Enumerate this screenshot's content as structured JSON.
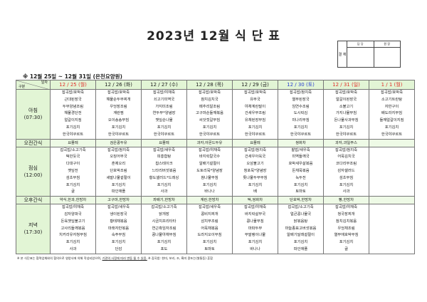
{
  "title": "2023년 12월 식 단 표",
  "approval": {
    "label": "결 재",
    "cols": [
      "담 당",
      "원 장"
    ]
  },
  "subtitle": "※ 12월 25일 ~ 12월 31일 (은천요양원)",
  "header": {
    "corner_top": "일자",
    "corner_bottom": "구분",
    "days": [
      {
        "label": "12 / 25 (월)",
        "color": "#e0302a"
      },
      {
        "label": "12 / 26 (화)",
        "color": "#222222"
      },
      {
        "label": "12 / 27 (수)",
        "color": "#222222"
      },
      {
        "label": "12 / 28 (목)",
        "color": "#222222"
      },
      {
        "label": "12 / 29 (금)",
        "color": "#222222"
      },
      {
        "label": "12 / 30 (토)",
        "color": "#2a3fd0"
      },
      {
        "label": "12 / 31 (일)",
        "color": "#e0302a"
      },
      {
        "label": "1 / 1 (월)",
        "color": "#e0302a"
      }
    ]
  },
  "rows": [
    {
      "type": "meal",
      "label": "아침",
      "time": "(07:30)",
      "days": [
        [
          "잡곡밥/호박죽",
          "근대된장국",
          "두부양념조림",
          "해물경단전",
          "얼갈이지짐",
          "포기김치",
          "한국야쿠르트"
        ],
        [
          "잡곡밥/호박죽",
          "해물순두부찌개",
          "우엉장조림",
          "계란찜",
          "오이송송무침",
          "포기김치",
          "한국야쿠르트"
        ],
        [
          "잡곡밥/야채죽",
          "쇠고기미역국",
          "가지미조림",
          "연두부*양념장",
          "깻잎순나물",
          "포기김치",
          "한국야쿠르트"
        ],
        [
          "잡곡밥/호박죽",
          "참치김치국",
          "메추리알조림",
          "고구마순들깨볶음",
          "씨앗젓갈무침",
          "포기김치",
          "한국야쿠르트"
        ],
        [
          "잡곡밥/호박죽",
          "유부국",
          "야채계란말이",
          "건새우무조림",
          "유채된장무침",
          "포기김치",
          "한국야쿠르트"
        ],
        [
          "잡곡밥/참치죽",
          "열무된장국",
          "임연수조림",
          "도시락김",
          "미나리무침",
          "포기김치",
          "한국야쿠르트"
        ],
        [
          "잡곡밥/호박죽",
          "얼갈이된장국",
          "소불고기",
          "가지나물무침",
          "돈나물사과무침",
          "포기김치",
          "한국야쿠르트"
        ],
        [
          "잡곡밥/호박죽",
          "소고기트란탕",
          "자반구이",
          "배도라지무침",
          "들깨얼갈이지짐",
          "포기김치",
          "한국야쿠르트"
        ]
      ]
    },
    {
      "type": "snack",
      "label": "오전간식",
      "days": [
        "요플레",
        "검은콩두유",
        "요플레",
        "과자,아몬드두유",
        "요플레",
        "쌍화차",
        "과자,과일주스",
        ""
      ]
    },
    {
      "type": "meal",
      "label": "점심",
      "time": "(12:00)",
      "days": [
        [
          "잡곡밥/소고기죽",
          "떡만둣국",
          "다대구이",
          "깻잎전",
          "섬초무침",
          "포기김치",
          "귤"
        ],
        [
          "잡곡밥/참치죽",
          "오징어무국",
          "훈제오리",
          "단호박조림",
          "세발나물겉절이",
          "포기김치",
          "파인애플"
        ],
        [
          "잡곡밥/새우죽",
          "피홍합탕",
          "찹스테이크",
          "느타리버섯볶음",
          "황도샐러드*드레싱",
          "포기김치",
          "사과"
        ],
        [
          "잡곡밥/야채죽",
          "바지락칼국수",
          "알배기겉절이",
          "도토리묵*양념장",
          "참나물무침",
          "포기김치",
          "바나나"
        ],
        [
          "잡곡밥/참치죽",
          "건새우아욱국",
          "오삼불고기",
          "청포묵*양념장",
          "톳나물두부무침",
          "포기김치",
          "배"
        ],
        [
          "찰밥/새우죽",
          "미역들깨국",
          "호박새우살볶음",
          "돈채묵볶음",
          "녹두전",
          "포기김치",
          "토마토"
        ],
        [
          "잡곡밥/참치죽",
          "어묵김치국",
          "코다리무조림",
          "감자샐러드",
          "섬초무침",
          "포기김치",
          "사과"
        ],
        []
      ]
    },
    {
      "type": "snack",
      "label": "오후간식",
      "days": [
        "약식,한과,한방차",
        "고구마,한방차",
        "꽈배기,한방차",
        "계란,한방차",
        "떡,쌍화차",
        "단호박,한방차",
        "빵,한방차",
        ""
      ]
    },
    {
      "type": "meal",
      "label": "저녁",
      "time": "(17:30)",
      "days": [
        [
          "잡곡밥/야채죽",
          "감자양파국",
          "돈육깻잎불고기",
          "고사리들깨볶음",
          "치커리유자청무침",
          "포기김치",
          "사과"
        ],
        [
          "잡곡밥/새우죽",
          "냉이된장국",
          "황태채볶음",
          "마래자반볶음",
          "숙주무침",
          "포기김치",
          "단감"
        ],
        [
          "잡곡밥/소고기죽",
          "닭개장",
          "시금치프리타타",
          "연근흑임자조림",
          "콩나물야채무침",
          "포기김치",
          "포도"
        ],
        [
          "잡곡밥/새우죽",
          "콩비지찌개",
          "삼치무조림",
          "어묵채볶음",
          "도라지오이무침",
          "포기김치",
          "토마토"
        ],
        [
          "잡곡밥/야채죽",
          "바지락살무국",
          "콩나물무침",
          "마파두부",
          "무말랭이나물",
          "포기김치",
          "바나나"
        ],
        [
          "잡곡밥/소고기죽",
          "얼큰콩나물국",
          "닭볶음탕",
          "마늘종표고버섯볶음",
          "알배기달래겉절이",
          "포기김치",
          "파인애플"
        ],
        [
          "잡곡밥/야채죽",
          "청국장찌개",
          "참치김치볶음",
          "우엉채조림",
          "열무애호박무침",
          "포기김치",
          "귤"
        ],
        []
      ]
    }
  ],
  "note": {
    "part1": "※ 본 식단표는 협력업체와의 협의으로 영양사에 의해 작성되었으며, ",
    "underlined": "기관의 사정에 따라 변동 될 수 있음.",
    "part2": " ※ 잡곡밥: 현미, 보리, 조, 흑미 콩또는(쌀통등) 혼합"
  }
}
